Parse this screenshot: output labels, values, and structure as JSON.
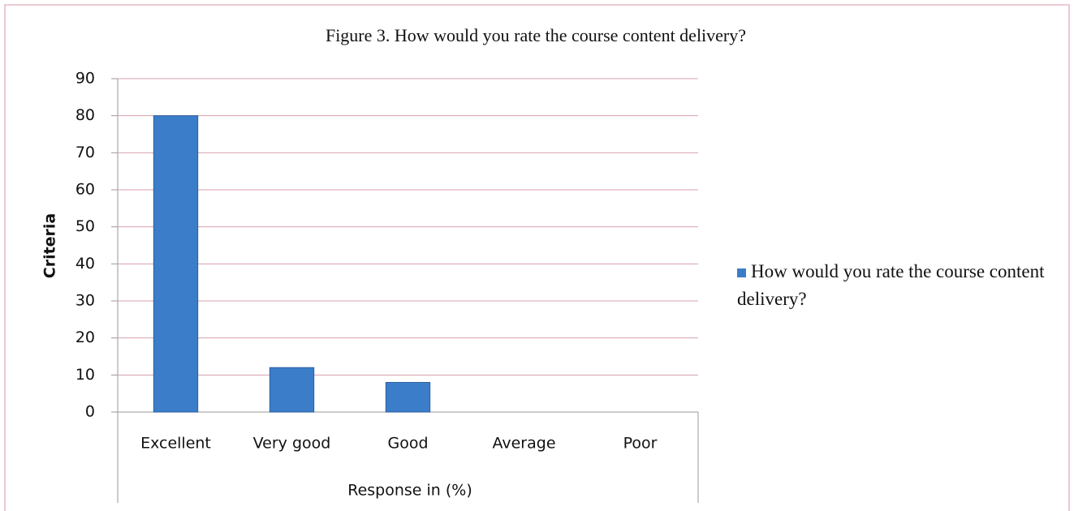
{
  "chart_data": {
    "type": "bar",
    "title": "Figure 3. How would you rate the course content delivery?",
    "y_label": "Criteria",
    "x_label": "Response in (%)",
    "categories": [
      "Excellent",
      "Very good",
      "Good",
      "Average",
      "Poor"
    ],
    "series": [
      {
        "name": "How would you rate the course content delivery?",
        "color": "#3b7dc9",
        "values": [
          80,
          12,
          8,
          0,
          0
        ]
      }
    ],
    "ylim": [
      0,
      90
    ],
    "yticks": [
      0,
      10,
      20,
      30,
      40,
      50,
      60,
      70,
      80,
      90
    ],
    "grid": true,
    "legend": "right"
  }
}
